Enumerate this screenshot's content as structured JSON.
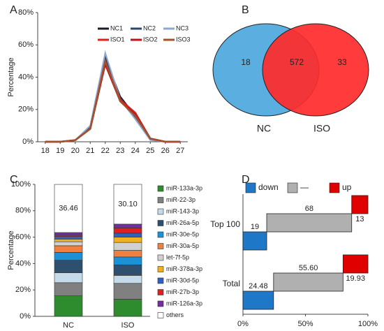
{
  "chart_data": [
    {
      "type": "line",
      "panel_label": "A",
      "ylabel": "Percentage",
      "x": [
        18,
        19,
        20,
        21,
        22,
        23,
        24,
        25,
        26,
        27
      ],
      "xlim": [
        17.5,
        27.5
      ],
      "xticks": [
        18,
        19,
        20,
        21,
        22,
        23,
        24,
        25,
        26,
        27
      ],
      "ylim": [
        0,
        80
      ],
      "yticks": [
        {
          "value": 0,
          "label": "0%"
        },
        {
          "value": 20,
          "label": "20%"
        },
        {
          "value": 40,
          "label": "40%"
        },
        {
          "value": 60,
          "label": "60%"
        },
        {
          "value": 80,
          "label": "80%"
        }
      ],
      "series": [
        {
          "name": "NC1",
          "color": "#1b1b2a",
          "values": [
            0,
            0,
            1,
            9,
            52,
            28,
            16,
            2,
            0,
            0
          ]
        },
        {
          "name": "NC2",
          "color": "#2e4470",
          "values": [
            0,
            0,
            1,
            9,
            53,
            27,
            15,
            2,
            0,
            0
          ]
        },
        {
          "name": "NC3",
          "color": "#8fa8d0",
          "values": [
            0,
            0,
            1,
            10,
            55,
            26,
            14,
            1,
            0,
            0
          ]
        },
        {
          "name": "ISO1",
          "color": "#e02020",
          "values": [
            0,
            0,
            1,
            8,
            49,
            26,
            18,
            2,
            0,
            0
          ]
        },
        {
          "name": "ISO2",
          "color": "#c0101a",
          "values": [
            0,
            0,
            1,
            8,
            48,
            25,
            17,
            2,
            0,
            0
          ]
        },
        {
          "name": "ISO3",
          "color": "#a0522d",
          "values": [
            0,
            0,
            1,
            8,
            50,
            25,
            16,
            2,
            0,
            0
          ]
        }
      ]
    },
    {
      "type": "venn",
      "panel_label": "B",
      "sets": [
        "NC",
        "ISO"
      ],
      "colors": [
        "#5aaee0",
        "#ff2a2a"
      ],
      "values": [
        18,
        572,
        33
      ]
    },
    {
      "type": "stacked_bar",
      "panel_label": "C",
      "ylabel": "Percentage",
      "categories": [
        "NC",
        "ISO"
      ],
      "ylim": [
        0,
        100
      ],
      "yticks": [
        {
          "value": 0,
          "label": "0%"
        },
        {
          "value": 20,
          "label": "20%"
        },
        {
          "value": 40,
          "label": "40%"
        },
        {
          "value": 60,
          "label": "60%"
        },
        {
          "value": 80,
          "label": "80%"
        },
        {
          "value": 100,
          "label": "100%"
        }
      ],
      "series": [
        {
          "name": "miR-133a-3p",
          "color": "#2e8b2e",
          "values": [
            15.5,
            13
          ]
        },
        {
          "name": "miR-22-3p",
          "color": "#808080",
          "values": [
            10,
            12
          ]
        },
        {
          "name": "miR-143-3p",
          "color": "#c5dbe9",
          "values": [
            7.5,
            6
          ]
        },
        {
          "name": "miR-26a-5p",
          "color": "#2f4f6f",
          "values": [
            9.5,
            8
          ]
        },
        {
          "name": "miR-30e-5p",
          "color": "#1e90d6",
          "values": [
            6,
            6
          ]
        },
        {
          "name": "miR-30a-5p",
          "color": "#f08040",
          "values": [
            5,
            5
          ]
        },
        {
          "name": "let-7f-5p",
          "color": "#d0d0d0",
          "values": [
            3,
            6
          ]
        },
        {
          "name": "miR-378a-3p",
          "color": "#f0b020",
          "values": [
            2,
            4
          ]
        },
        {
          "name": "miR-30d-5p",
          "color": "#3060c0",
          "values": [
            2,
            3
          ]
        },
        {
          "name": "miR-27b-3p",
          "color": "#e02020",
          "values": [
            1,
            4
          ]
        },
        {
          "name": "miR-126a-3p",
          "color": "#7030a0",
          "values": [
            2,
            2.9
          ]
        },
        {
          "name": "others",
          "color": "#ffffff",
          "values": [
            36.46,
            30.1
          ],
          "value_labels": [
            "36.46",
            "30.10"
          ]
        }
      ]
    },
    {
      "type": "waterfall_bar",
      "panel_label": "D",
      "categories": [
        "Top 100",
        "Total"
      ],
      "xlim": [
        0,
        100
      ],
      "xticks": [
        {
          "value": 0,
          "label": "0%"
        },
        {
          "value": 50,
          "label": "50%"
        },
        {
          "value": 100,
          "label": "100%"
        }
      ],
      "series": [
        {
          "name": "down",
          "color": "#1f77c8",
          "values": [
            19,
            24.48
          ]
        },
        {
          "name": "—",
          "color": "#b0b0b0",
          "values": [
            68,
            55.6
          ],
          "value_labels": [
            "68",
            "55.60"
          ]
        },
        {
          "name": "up",
          "color": "#e00000",
          "values": [
            13,
            19.93
          ]
        }
      ]
    }
  ]
}
